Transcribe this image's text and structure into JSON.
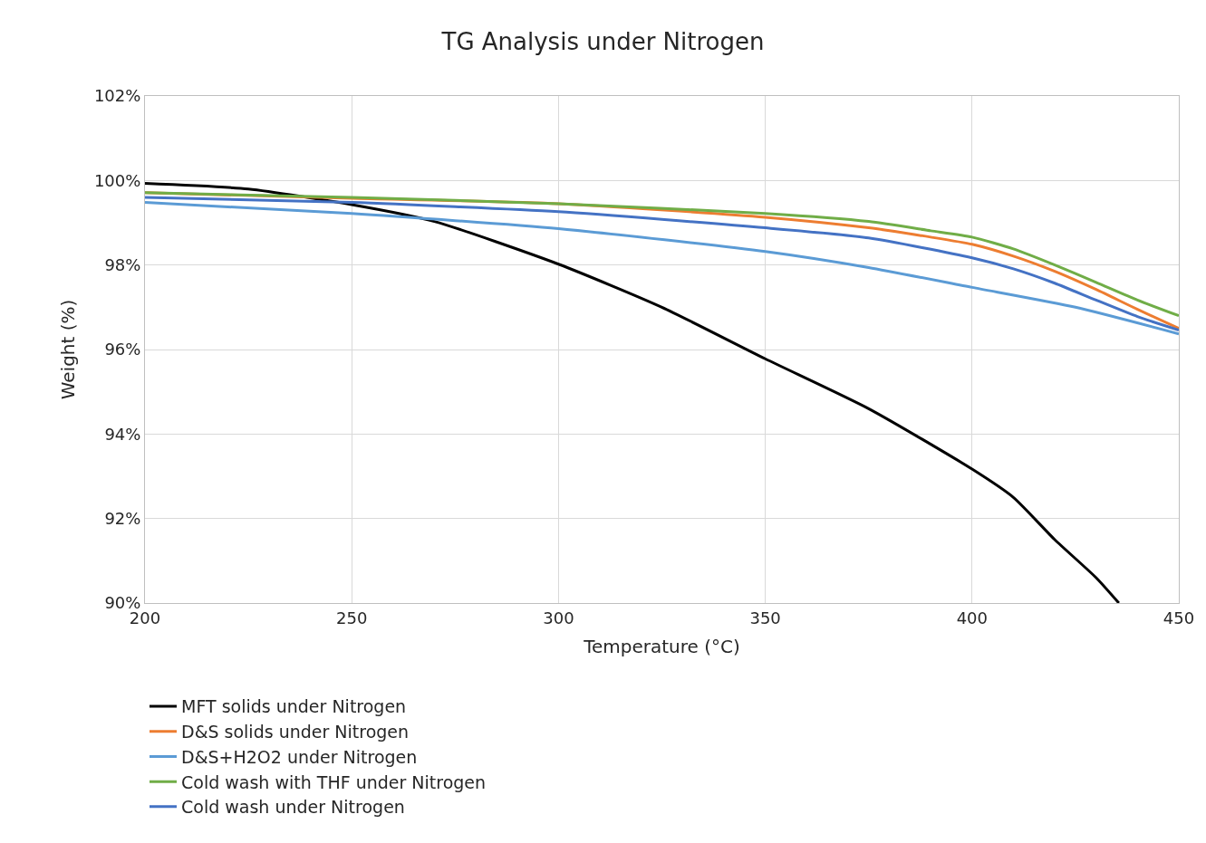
{
  "chart_data": {
    "type": "line",
    "title": "TG Analysis under Nitrogen",
    "xlabel": "Temperature (°C)",
    "ylabel": "Weight (%)",
    "xlim": [
      200,
      450
    ],
    "xticks": [
      200,
      250,
      300,
      350,
      400,
      450
    ],
    "ylim": [
      90,
      102
    ],
    "yticks": [
      {
        "value": 90,
        "label": "90%"
      },
      {
        "value": 92,
        "label": "92%"
      },
      {
        "value": 94,
        "label": "94%"
      },
      {
        "value": 96,
        "label": "96%"
      },
      {
        "value": 98,
        "label": "98%"
      },
      {
        "value": 100,
        "label": "100%"
      },
      {
        "value": 102,
        "label": "102%"
      }
    ],
    "grid": true,
    "legend": "bottom",
    "marker": "none",
    "line_style": "solid",
    "series": [
      {
        "name": "MFT solids under Nitrogen",
        "color": "#000000",
        "x": [
          200,
          225,
          250,
          270,
          300,
          325,
          350,
          375,
          400,
          410,
          420,
          430,
          435.5
        ],
        "values": [
          99.93,
          99.8,
          99.43,
          99.03,
          98.02,
          97.0,
          95.78,
          94.6,
          93.17,
          92.5,
          91.5,
          90.6,
          90.0
        ]
      },
      {
        "name": "D&S solids under Nitrogen",
        "color": "#ed7d31",
        "x": [
          200,
          250,
          300,
          350,
          375,
          390,
          400,
          410,
          420,
          430,
          440,
          450
        ],
        "values": [
          99.71,
          99.58,
          99.45,
          99.13,
          98.88,
          98.66,
          98.49,
          98.21,
          97.85,
          97.42,
          96.95,
          96.5
        ]
      },
      {
        "name": "D&S+H2O2 under Nitrogen",
        "color": "#5b9bd5",
        "x": [
          200,
          250,
          300,
          350,
          375,
          400,
          425,
          450
        ],
        "values": [
          99.48,
          99.22,
          98.86,
          98.32,
          97.94,
          97.47,
          97.0,
          96.37
        ]
      },
      {
        "name": "Cold wash with THF under Nitrogen",
        "color": "#70ad47",
        "x": [
          200,
          250,
          300,
          350,
          375,
          390,
          400,
          410,
          420,
          430,
          440,
          450
        ],
        "values": [
          99.71,
          99.6,
          99.45,
          99.22,
          99.03,
          98.81,
          98.66,
          98.38,
          98.0,
          97.59,
          97.17,
          96.8
        ]
      },
      {
        "name": "Cold wash under Nitrogen",
        "color": "#4472c4",
        "x": [
          200,
          250,
          300,
          350,
          375,
          400,
          410,
          420,
          430,
          440,
          450
        ],
        "values": [
          99.6,
          99.48,
          99.26,
          98.88,
          98.64,
          98.17,
          97.91,
          97.57,
          97.17,
          96.78,
          96.46
        ]
      }
    ]
  }
}
